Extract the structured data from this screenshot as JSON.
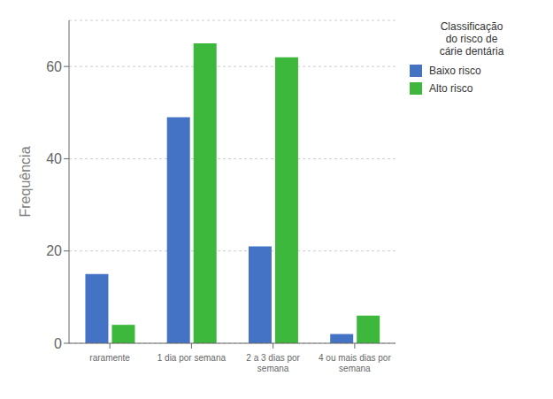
{
  "chart_data": {
    "type": "bar",
    "categories": [
      "raramente",
      "1 dia por semana",
      "2 a 3 dias por\nsemana",
      "4 ou mais dias por\nsemana"
    ],
    "series": [
      {
        "name": "Baixo risco",
        "color": "#4472C4",
        "values": [
          15,
          49,
          21,
          2
        ]
      },
      {
        "name": "Alto risco",
        "color": "#3DB83D",
        "values": [
          4,
          65,
          62,
          6
        ]
      }
    ],
    "ylabel": "Frequência",
    "ylim": [
      0,
      70
    ],
    "yticks": [
      0,
      20,
      40,
      60
    ],
    "grid": true,
    "legend": "right",
    "legend_title": "Classificação\ndo risco de\ncárie dentária"
  }
}
